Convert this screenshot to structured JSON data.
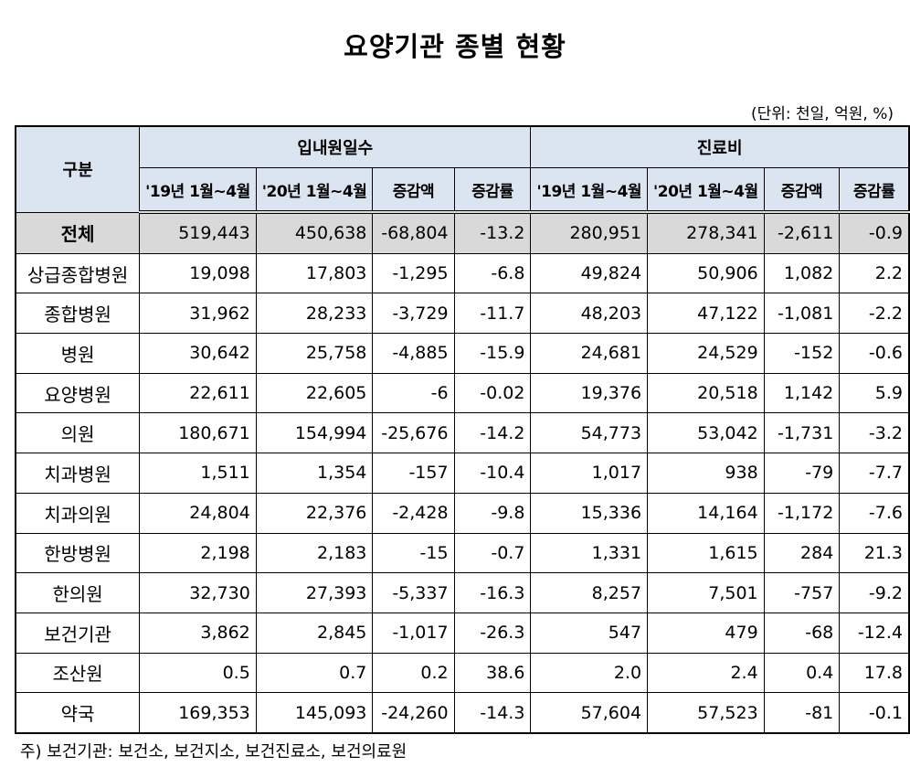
{
  "title": "요양기관 종별 현황",
  "unit": "(단위: 천일, 억원, %)",
  "header": {
    "category": "구분",
    "group1": "입내원일수",
    "group2": "진료비",
    "sub": [
      "'19년 1월~4월",
      "'20년 1월~4월",
      "증감액",
      "증감률",
      "'19년 1월~4월",
      "'20년 1월~4월",
      "증감액",
      "증감률"
    ]
  },
  "rows": [
    {
      "name": "전체",
      "v": [
        "519,443",
        "450,638",
        "-68,804",
        "-13.2",
        "280,951",
        "278,341",
        "-2,611",
        "-0.9"
      ]
    },
    {
      "name": "상급종합병원",
      "v": [
        "19,098",
        "17,803",
        "-1,295",
        "-6.8",
        "49,824",
        "50,906",
        "1,082",
        "2.2"
      ]
    },
    {
      "name": "종합병원",
      "v": [
        "31,962",
        "28,233",
        "-3,729",
        "-11.7",
        "48,203",
        "47,122",
        "-1,081",
        "-2.2"
      ]
    },
    {
      "name": "병원",
      "v": [
        "30,642",
        "25,758",
        "-4,885",
        "-15.9",
        "24,681",
        "24,529",
        "-152",
        "-0.6"
      ]
    },
    {
      "name": "요양병원",
      "v": [
        "22,611",
        "22,605",
        "-6",
        "-0.02",
        "19,376",
        "20,518",
        "1,142",
        "5.9"
      ]
    },
    {
      "name": "의원",
      "v": [
        "180,671",
        "154,994",
        "-25,676",
        "-14.2",
        "54,773",
        "53,042",
        "-1,731",
        "-3.2"
      ]
    },
    {
      "name": "치과병원",
      "v": [
        "1,511",
        "1,354",
        "-157",
        "-10.4",
        "1,017",
        "938",
        "-79",
        "-7.7"
      ]
    },
    {
      "name": "치과의원",
      "v": [
        "24,804",
        "22,376",
        "-2,428",
        "-9.8",
        "15,336",
        "14,164",
        "-1,172",
        "-7.6"
      ]
    },
    {
      "name": "한방병원",
      "v": [
        "2,198",
        "2,183",
        "-15",
        "-0.7",
        "1,331",
        "1,615",
        "284",
        "21.3"
      ]
    },
    {
      "name": "한의원",
      "v": [
        "32,730",
        "27,393",
        "-5,337",
        "-16.3",
        "8,257",
        "7,501",
        "-757",
        "-9.2"
      ]
    },
    {
      "name": "보건기관",
      "v": [
        "3,862",
        "2,845",
        "-1,017",
        "-26.3",
        "547",
        "479",
        "-68",
        "-12.4"
      ]
    },
    {
      "name": "조산원",
      "v": [
        "0.5",
        "0.7",
        "0.2",
        "38.6",
        "2.0",
        "2.4",
        "0.4",
        "17.8"
      ]
    },
    {
      "name": "약국",
      "v": [
        "169,353",
        "145,093",
        "-24,260",
        "-14.3",
        "57,604",
        "57,523",
        "-81",
        "-0.1"
      ]
    }
  ],
  "note": "주) 보건기관: 보건소, 보건지소, 보건진료소, 보건의료원",
  "colors": {
    "header_bg": "#dbe5f1",
    "total_bg": "#d9d9d9"
  }
}
